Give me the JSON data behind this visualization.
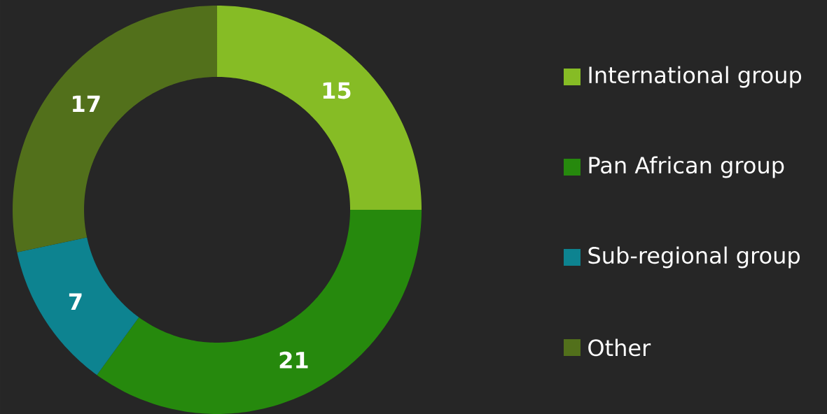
{
  "chart_data": {
    "type": "donut",
    "categories": [
      "International group",
      "Pan African group",
      "Sub-regional group",
      "Other"
    ],
    "values": [
      15,
      21,
      7,
      17
    ],
    "colors": [
      "#86bc25",
      "#26890d",
      "#0d8390",
      "#52701b"
    ],
    "data_labels": true,
    "legend": "right"
  }
}
